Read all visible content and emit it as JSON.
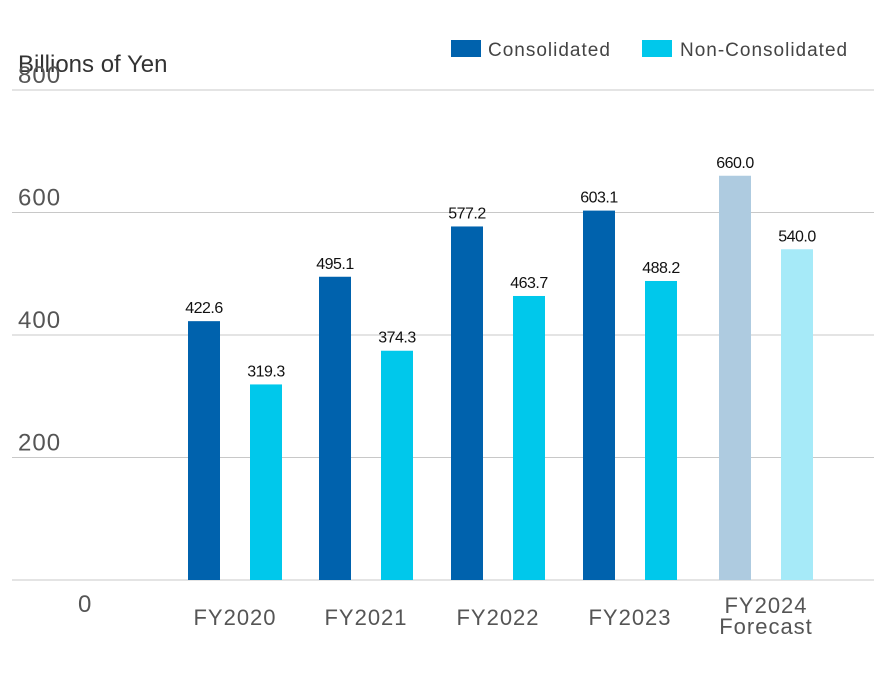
{
  "chart_data": {
    "type": "bar",
    "ylabel": "Billions of Yen",
    "ylim": [
      0,
      800
    ],
    "yticks": [
      "0",
      "200",
      "400",
      "600",
      "800"
    ],
    "grid": true,
    "legend_position": "top-right",
    "categories": [
      [
        "FY2020"
      ],
      [
        "FY2021"
      ],
      [
        "FY2022"
      ],
      [
        "FY2023"
      ],
      [
        "FY2024",
        "Forecast"
      ]
    ],
    "series": [
      {
        "name": "Consolidated",
        "color": "#0062ad",
        "forecast_color": "#aecbe0",
        "values": [
          422.6,
          495.1,
          577.2,
          603.1,
          660.0
        ],
        "labels": [
          "422.6",
          "495.1",
          "577.2",
          "603.1",
          "660.0"
        ]
      },
      {
        "name": "Non-Consolidated",
        "color": "#00c8eb",
        "forecast_color": "#a6eaf8",
        "values": [
          319.3,
          374.3,
          463.7,
          488.2,
          540.0
        ],
        "labels": [
          "319.3",
          "374.3",
          "463.7",
          "488.2",
          "540.0"
        ]
      }
    ]
  }
}
